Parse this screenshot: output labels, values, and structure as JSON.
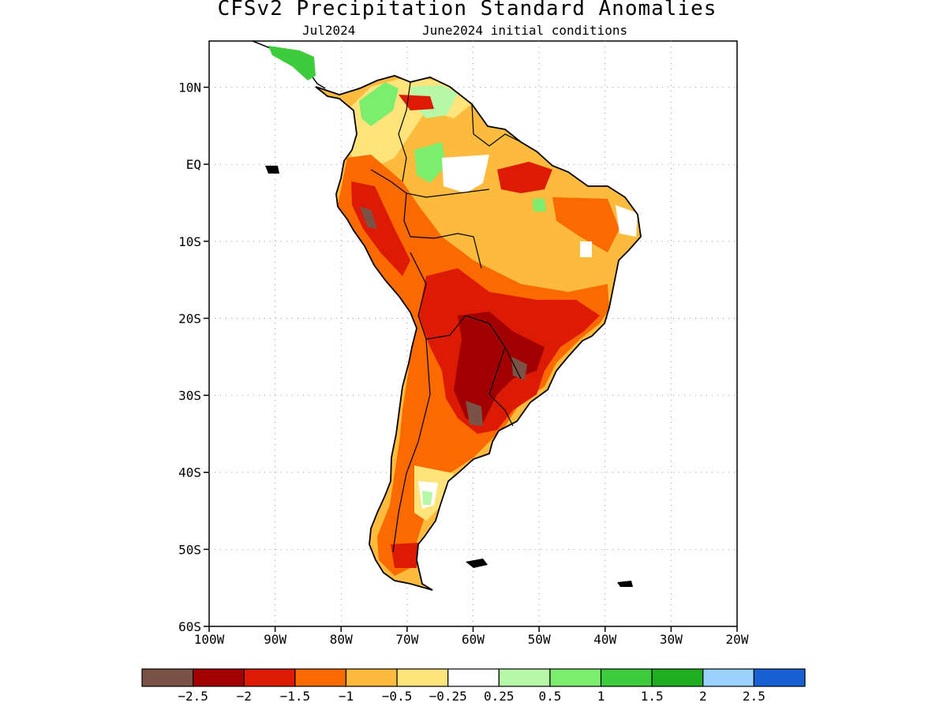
{
  "title": "CFSv2 Precipitation Standard Anomalies",
  "subtitle_month": "Jul2024",
  "subtitle_init": "June2024 initial conditions",
  "map": {
    "lon_range": [
      -100,
      -20
    ],
    "lat_range": [
      -60,
      16
    ],
    "y_ticks": [
      "10N",
      "EQ",
      "10S",
      "20S",
      "30S",
      "40S",
      "50S",
      "60S"
    ],
    "x_ticks": [
      "100W",
      "90W",
      "80W",
      "70W",
      "60W",
      "50W",
      "40W",
      "30W",
      "20W"
    ],
    "grid": "dotted"
  },
  "colorbar": {
    "colors": [
      "#7b5246",
      "#a20000",
      "#dd1b04",
      "#fb6a00",
      "#fcbb3c",
      "#ffe47c",
      "#ffffff",
      "#b5f8a8",
      "#7cee6e",
      "#3ccc3c",
      "#1fae1f",
      "#99d2fc",
      "#1660d4"
    ],
    "labels": [
      "−2.5",
      "−2",
      "−1.5",
      "−1",
      "−0.5",
      "−0.25",
      "0.25",
      "0.5",
      "1",
      "1.5",
      "2",
      "2.5"
    ]
  }
}
